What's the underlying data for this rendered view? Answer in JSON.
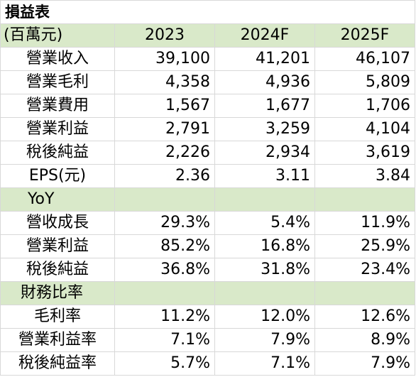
{
  "title": "損益表",
  "header": {
    "unit": "(百萬元)",
    "years": [
      "2023",
      "2024F",
      "2025F"
    ]
  },
  "income_rows": [
    {
      "label": "營業收入",
      "values": [
        "39,100",
        "41,201",
        "46,107"
      ]
    },
    {
      "label": "營業毛利",
      "values": [
        "4,358",
        "4,936",
        "5,809"
      ]
    },
    {
      "label": "營業費用",
      "values": [
        "1,567",
        "1,677",
        "1,706"
      ]
    },
    {
      "label": "營業利益",
      "values": [
        "2,791",
        "3,259",
        "4,104"
      ]
    },
    {
      "label": "稅後純益",
      "values": [
        "2,226",
        "2,934",
        "3,619"
      ]
    },
    {
      "label": "EPS(元)",
      "values": [
        "2.36",
        "3.11",
        "3.84"
      ]
    }
  ],
  "yoy_section": {
    "label": "YoY"
  },
  "yoy_rows": [
    {
      "label": "營收成長",
      "values": [
        "29.3%",
        "5.4%",
        "11.9%"
      ]
    },
    {
      "label": "營業利益",
      "values": [
        "85.2%",
        "16.8%",
        "25.9%"
      ]
    },
    {
      "label": "稅後純益",
      "values": [
        "36.8%",
        "31.8%",
        "23.4%"
      ]
    }
  ],
  "ratio_section": {
    "label": "財務比率"
  },
  "ratio_rows": [
    {
      "label": "毛利率",
      "values": [
        "11.2%",
        "12.0%",
        "12.6%"
      ]
    },
    {
      "label": "營業利益率",
      "values": [
        "7.1%",
        "7.9%",
        "8.9%"
      ]
    },
    {
      "label": "稅後純益率",
      "values": [
        "5.7%",
        "7.1%",
        "7.9%"
      ]
    }
  ]
}
